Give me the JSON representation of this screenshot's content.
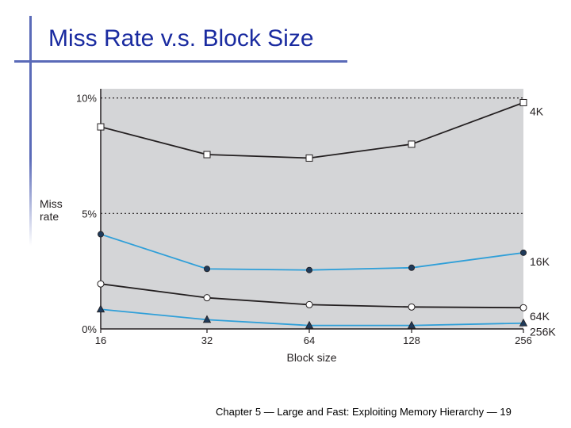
{
  "slide": {
    "title": "Miss Rate v.s. Block Size",
    "footer": "Chapter 5 — Large and Fast: Exploiting Memory Hierarchy — 19"
  },
  "chart_data": {
    "type": "line",
    "title": "Miss Rate v.s. Block Size",
    "xlabel": "Block size",
    "ylabel": "Miss rate",
    "x": [
      16,
      32,
      64,
      128,
      256
    ],
    "x_ticks": [
      "16",
      "32",
      "64",
      "128",
      "256"
    ],
    "y_ticks": [
      "0%",
      "5%",
      "10%"
    ],
    "y_tick_values": [
      0,
      5,
      10
    ],
    "ylim": [
      0,
      10.4
    ],
    "grid": "dotted horizontal at 5% and 10%",
    "colors": {
      "background": "#d4d5d7",
      "black": "#231f20",
      "blue": "#2f9fd8"
    },
    "series": [
      {
        "name": "4K",
        "values": [
          8.75,
          7.55,
          7.4,
          8.0,
          9.8
        ],
        "color": "#231f20",
        "marker": "square-open"
      },
      {
        "name": "16K",
        "values": [
          4.1,
          2.6,
          2.55,
          2.65,
          3.3
        ],
        "color": "#2f9fd8",
        "marker": "circle-filled"
      },
      {
        "name": "64K",
        "values": [
          1.95,
          1.35,
          1.05,
          0.95,
          0.92
        ],
        "color": "#231f20",
        "marker": "circle-open"
      },
      {
        "name": "256K",
        "values": [
          0.85,
          0.4,
          0.15,
          0.15,
          0.25
        ],
        "color": "#2f9fd8",
        "marker": "triangle-filled"
      }
    ]
  }
}
